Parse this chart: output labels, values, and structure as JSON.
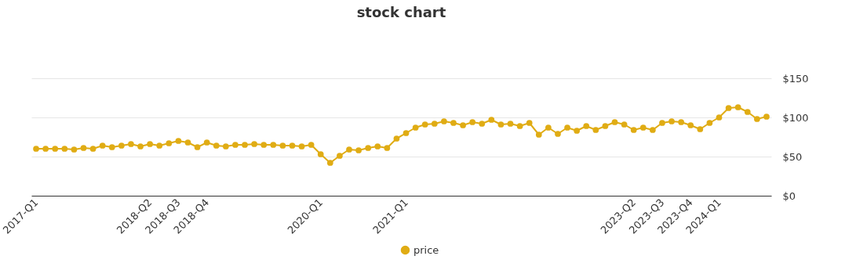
{
  "chart_data": {
    "type": "line",
    "title": "stock chart",
    "categories": [
      "2017-Q1",
      null,
      null,
      null,
      null,
      null,
      null,
      null,
      null,
      null,
      null,
      null,
      "2018-Q2",
      null,
      null,
      "2018-Q3",
      null,
      null,
      "2018-Q4",
      null,
      null,
      null,
      null,
      null,
      null,
      null,
      null,
      null,
      null,
      null,
      "2020-Q1",
      null,
      null,
      null,
      null,
      null,
      null,
      null,
      null,
      "2021-Q1",
      null,
      null,
      null,
      null,
      null,
      null,
      null,
      null,
      null,
      null,
      null,
      null,
      null,
      null,
      null,
      null,
      null,
      null,
      null,
      null,
      null,
      null,
      null,
      "2023-Q2",
      null,
      null,
      "2023-Q3",
      null,
      null,
      "2023-Q4",
      null,
      null,
      "2024-Q1",
      null,
      null,
      null,
      null,
      null
    ],
    "series": [
      {
        "name": "price",
        "color": "#e0ac14",
        "values": [
          60,
          60,
          60,
          60,
          59,
          61,
          60,
          64,
          62,
          64,
          66,
          63,
          66,
          64,
          67,
          70,
          68,
          62,
          68,
          64,
          63,
          65,
          65,
          66,
          65,
          65,
          64,
          64,
          63,
          65,
          53,
          42,
          51,
          59,
          58,
          61,
          63,
          61,
          73,
          80,
          87,
          91,
          92,
          95,
          93,
          90,
          94,
          92,
          97,
          91,
          92,
          89,
          93,
          78,
          87,
          79,
          87,
          83,
          89,
          84,
          89,
          94,
          91,
          84,
          87,
          84,
          93,
          95,
          94,
          90,
          85,
          93,
          100,
          112,
          113,
          107,
          98,
          101
        ]
      }
    ],
    "ylim": [
      0,
      150
    ],
    "yticks": [
      {
        "value": 0,
        "label": "$0"
      },
      {
        "value": 50,
        "label": "$50"
      },
      {
        "value": 100,
        "label": "$100"
      },
      {
        "value": 150,
        "label": "$150"
      }
    ],
    "grid": "y",
    "legend": "bottom",
    "marker": "circle",
    "line_style": "solid"
  }
}
